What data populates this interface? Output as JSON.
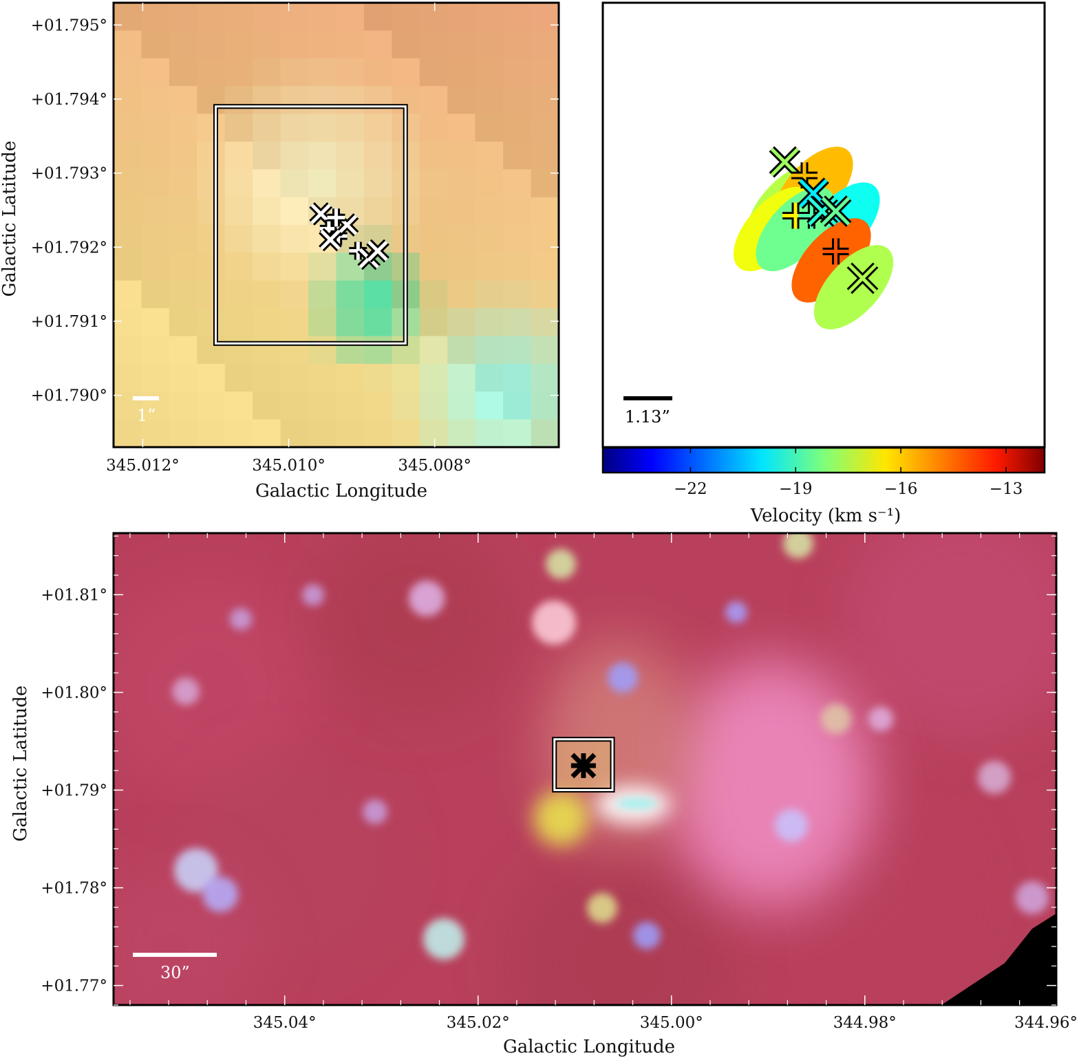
{
  "chart_data": [
    {
      "type": "heatmap",
      "panel": "top-left",
      "description_free": true,
      "xlabel": "Galactic Longitude",
      "ylabel": "Galactic Latitude",
      "xlim": [
        345.0124,
        345.0063
      ],
      "ylim": [
        1.7893,
        1.7953
      ],
      "xticks": [
        345.012,
        345.01,
        345.008
      ],
      "xtick_labels": [
        "345.012°",
        "345.010°",
        "345.008°"
      ],
      "yticks": [
        1.795,
        1.794,
        1.793,
        1.792,
        1.791,
        1.79
      ],
      "ytick_labels": [
        "+01.795°",
        "+01.794°",
        "+01.793°",
        "+01.792°",
        "+01.791°",
        "+01.790°"
      ],
      "scalebar_label": "1”",
      "box": {
        "l_min": 345.0084,
        "l_max": 345.011,
        "b_min": 1.7907,
        "b_max": 1.7939
      },
      "markers": [
        {
          "l": 345.00956,
          "b": 1.79245,
          "symbol": "x"
        },
        {
          "l": 345.00945,
          "b": 1.79225,
          "symbol": "+"
        },
        {
          "l": 345.00932,
          "b": 1.79215,
          "symbol": "+"
        },
        {
          "l": 345.0092,
          "b": 1.7923,
          "symbol": "x"
        },
        {
          "l": 345.00935,
          "b": 1.7924,
          "symbol": "+"
        },
        {
          "l": 345.00943,
          "b": 1.7921,
          "symbol": "x"
        },
        {
          "l": 345.00905,
          "b": 1.79195,
          "symbol": "+"
        },
        {
          "l": 345.0089,
          "b": 1.79185,
          "symbol": "x"
        },
        {
          "l": 345.00878,
          "b": 1.79195,
          "symbol": "x"
        }
      ],
      "colors": {
        "bg_orange": "#e8a277",
        "bg_yellow": "#f2d98a",
        "bg_pale": "#f7f2c5",
        "teal": "#35d8a0",
        "cyan": "#96f7ee"
      }
    },
    {
      "type": "scatter",
      "panel": "top-right",
      "scalebar_label": "1.13”",
      "colorbar": {
        "label": "Velocity (km s⁻¹)",
        "vmin": -24.5,
        "vmax": -11.9,
        "ticks": [
          -22,
          -19,
          -16,
          -13
        ],
        "tick_labels": [
          "−22",
          "−19",
          "−16",
          "−13"
        ]
      },
      "sources": [
        {
          "velocity": -20.3,
          "symbol": "ellipse",
          "ra_off": -0.18,
          "dec_off": 0.25
        },
        {
          "velocity": -17.5,
          "symbol": "ellipse",
          "ra_off": -0.4,
          "dec_off": 0.15
        },
        {
          "velocity": -15.8,
          "symbol": "ellipse",
          "ra_off": -0.1,
          "dec_off": 0.35
        },
        {
          "velocity": -19.6,
          "symbol": "ellipse",
          "ra_off": 0.2,
          "dec_off": -0.05
        },
        {
          "velocity": -16.8,
          "symbol": "ellipse",
          "ra_off": -0.55,
          "dec_off": -0.1
        },
        {
          "velocity": -18.4,
          "symbol": "ellipse",
          "ra_off": -0.3,
          "dec_off": -0.1
        },
        {
          "velocity": -14.7,
          "symbol": "ellipse",
          "ra_off": 0.1,
          "dec_off": -0.45
        },
        {
          "velocity": -17.6,
          "symbol": "ellipse",
          "ra_off": 0.35,
          "dec_off": -0.75
        }
      ],
      "markers": [
        {
          "symbol": "x",
          "velocity": -17.8,
          "ra_off": -0.42,
          "dec_off": 0.65
        },
        {
          "symbol": "+",
          "velocity": -15.8,
          "ra_off": -0.2,
          "dec_off": 0.5
        },
        {
          "symbol": "x",
          "velocity": -20.0,
          "ra_off": -0.1,
          "dec_off": 0.3
        },
        {
          "symbol": "+",
          "velocity": -16.5,
          "ra_off": -0.3,
          "dec_off": 0.05
        },
        {
          "symbol": "+",
          "velocity": -18.8,
          "ra_off": -0.12,
          "dec_off": 0.05
        },
        {
          "symbol": "x",
          "velocity": -19.3,
          "ra_off": 0.0,
          "dec_off": 0.1
        },
        {
          "symbol": "x",
          "velocity": -18.5,
          "ra_off": 0.15,
          "dec_off": 0.1
        },
        {
          "symbol": "+",
          "velocity": -14.5,
          "ra_off": 0.15,
          "dec_off": -0.35
        },
        {
          "symbol": "x",
          "velocity": -17.6,
          "ra_off": 0.45,
          "dec_off": -0.65
        }
      ]
    },
    {
      "type": "heatmap",
      "panel": "bottom",
      "xlabel": "Galactic Longitude",
      "ylabel": "Galactic Latitude",
      "xlim": [
        345.0577,
        344.9602
      ],
      "ylim": [
        1.768,
        1.8163
      ],
      "xticks": [
        345.04,
        345.02,
        345.0,
        344.98,
        344.96
      ],
      "xtick_labels": [
        "345.04°",
        "345.02°",
        "345.00°",
        "344.98°",
        "344.96°"
      ],
      "yticks": [
        1.81,
        1.8,
        1.79,
        1.78,
        1.77
      ],
      "ytick_labels": [
        "+01.81°",
        "+01.80°",
        "+01.79°",
        "+01.78°",
        "+01.77°"
      ],
      "scalebar_label": "30”",
      "box": {
        "l_min": 345.0061,
        "l_max": 345.0121,
        "b_min": 1.79,
        "b_max": 1.7952
      },
      "marker": {
        "l": 345.0091,
        "b": 1.7925,
        "symbol": "*"
      },
      "colors": {
        "bg_red": "#b8405c",
        "bg_pink": "#d05a80",
        "glow_pink": "#f28fc6",
        "yellow": "#e8e050",
        "cyan": "#9cf0ee",
        "black_corner": "#000000"
      }
    }
  ]
}
